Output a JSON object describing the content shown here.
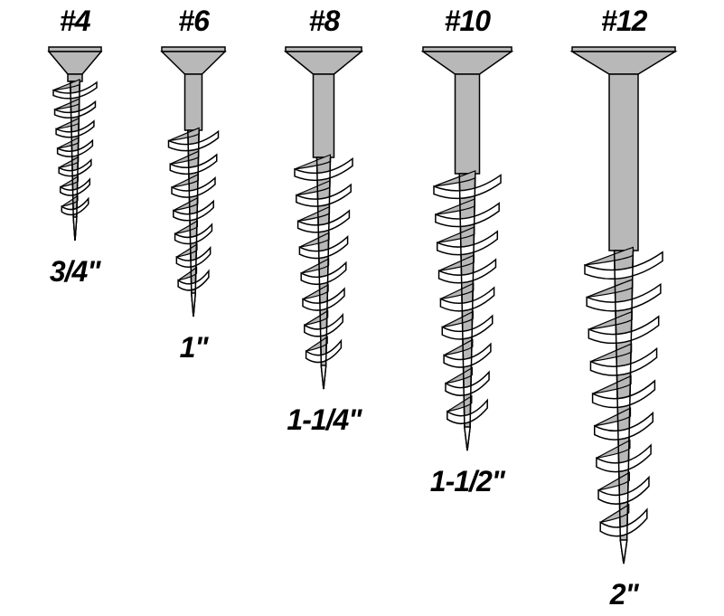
{
  "infographic": {
    "type": "infographic",
    "background_color": "#ffffff",
    "label_color": "#000000",
    "label_fontsize": 32,
    "label_fontweight": 900,
    "label_fontstyle": "italic",
    "screw_fill": "#b8b8b8",
    "screw_stroke": "#000000",
    "screw_stroke_width": 1.5,
    "screws": [
      {
        "size": "#4",
        "length": "3/4\"",
        "head_w": 58,
        "shank_w": 16,
        "shank_h": 8,
        "thread_h": 150,
        "thread_turns": 7,
        "thread_d": 48
      },
      {
        "size": "#6",
        "length": "1\"",
        "head_w": 70,
        "shank_w": 19,
        "shank_h": 62,
        "thread_h": 180,
        "thread_turns": 7,
        "thread_d": 55
      },
      {
        "size": "#8",
        "length": "1-1/4\"",
        "head_w": 84,
        "shank_w": 23,
        "shank_h": 92,
        "thread_h": 230,
        "thread_turns": 8,
        "thread_d": 64
      },
      {
        "size": "#10",
        "length": "1-1/2\"",
        "head_w": 98,
        "shank_w": 27,
        "shank_h": 110,
        "thread_h": 280,
        "thread_turns": 9,
        "thread_d": 74
      },
      {
        "size": "#12",
        "length": "2\"",
        "head_w": 114,
        "shank_w": 32,
        "shank_h": 195,
        "thread_h": 320,
        "thread_turns": 9,
        "thread_d": 86
      }
    ]
  }
}
